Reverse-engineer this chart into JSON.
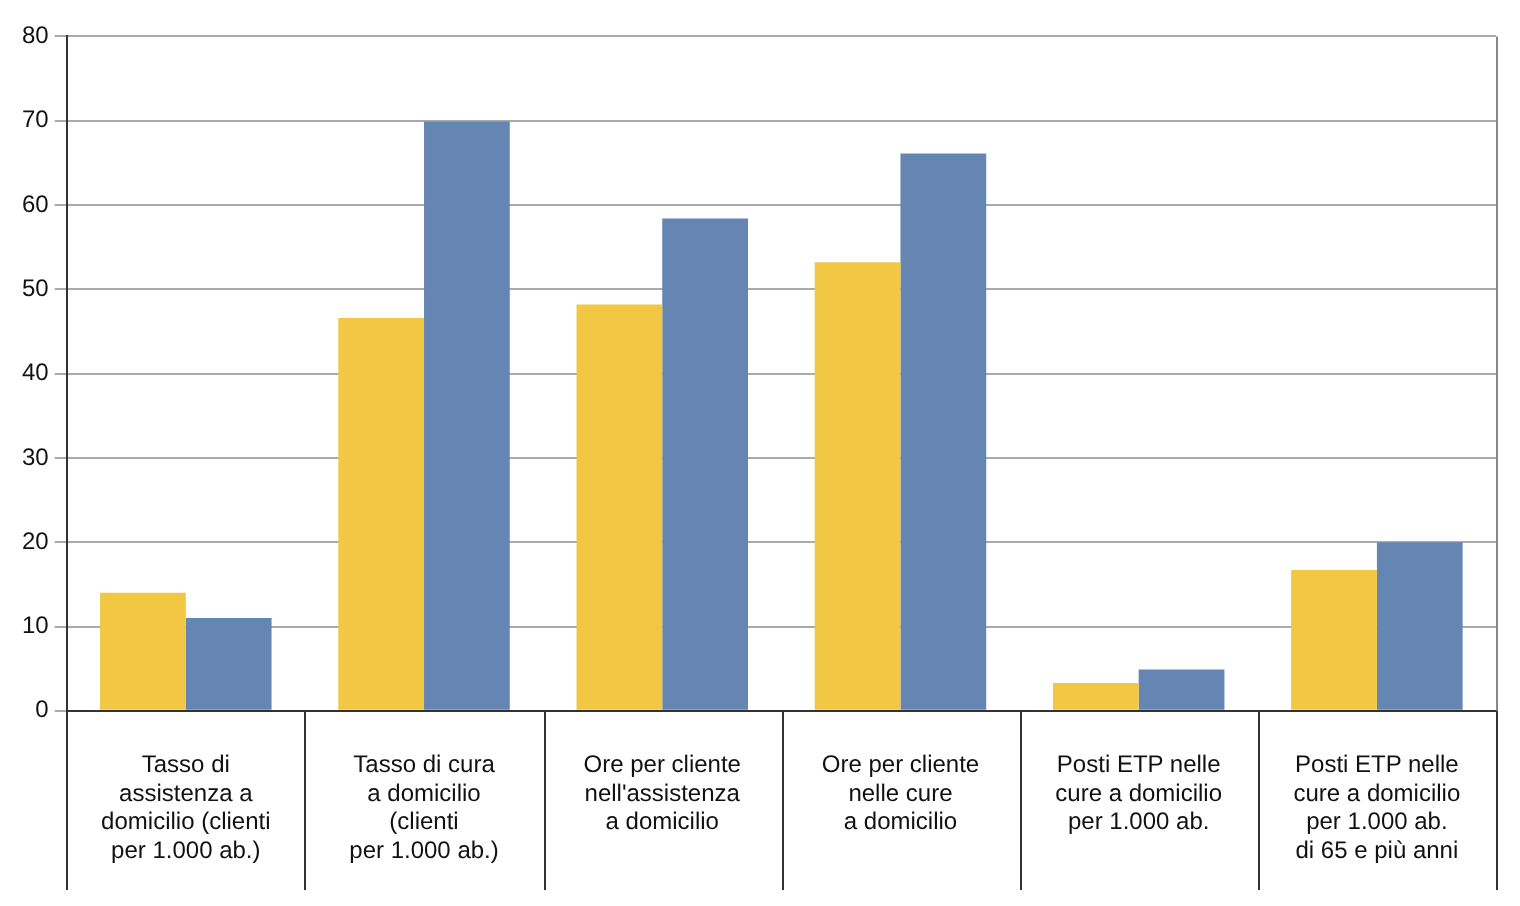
{
  "chart_data": {
    "type": "bar",
    "categories": [
      "Tasso di\nassistenza a\ndomicilio (clienti\nper 1.000 ab.)",
      "Tasso di cura\na domicilio\n(clienti\nper 1.000 ab.)",
      "Ore per cliente\nnell'assistenza\na domicilio",
      "Ore per cliente\nnelle cure\na domicilio",
      "Posti ETP nelle\ncure a domicilio\nper 1.000 ab.",
      "Posti ETP nelle\ncure a domicilio\nper 1.000 ab.\ndi 65 e più anni"
    ],
    "series": [
      {
        "color": "#f2c744",
        "values": [
          14,
          46.6,
          48.2,
          53.2,
          3.3,
          16.7
        ]
      },
      {
        "color": "#6585b3",
        "values": [
          11,
          69.9,
          58.4,
          66.1,
          4.9,
          20
        ]
      }
    ],
    "ylim": [
      0,
      80
    ],
    "yticks": [
      0,
      10,
      20,
      30,
      40,
      50,
      60,
      70,
      80
    ],
    "grid": "y",
    "legend": false
  }
}
